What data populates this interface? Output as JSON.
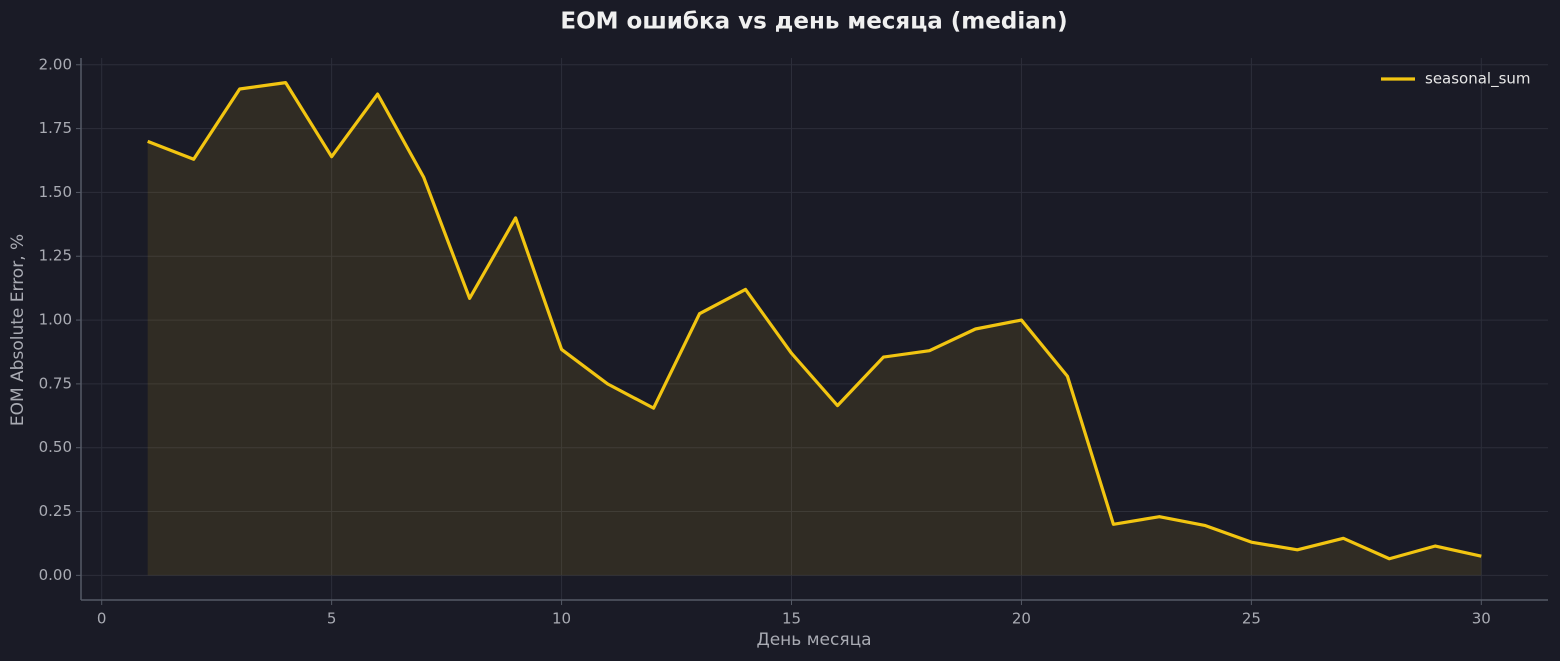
{
  "chart_data": {
    "type": "line",
    "title": "EOM ошибка vs день месяца (median)",
    "x_label": "День месяца",
    "y_label": "EOM Absolute Error, %",
    "x": [
      1,
      2,
      3,
      4,
      5,
      6,
      7,
      8,
      9,
      10,
      11,
      12,
      13,
      14,
      15,
      16,
      17,
      18,
      19,
      20,
      21,
      22,
      23,
      24,
      25,
      26,
      27,
      28,
      29,
      30
    ],
    "series": [
      {
        "name": "seasonal_sum",
        "color": "#f2c511",
        "values": [
          1.7,
          1.63,
          1.905,
          1.93,
          1.64,
          1.885,
          1.56,
          1.085,
          1.4,
          0.885,
          0.75,
          0.655,
          1.025,
          1.12,
          0.87,
          0.665,
          0.855,
          0.88,
          0.965,
          1.0,
          0.78,
          0.2,
          0.23,
          0.195,
          0.13,
          0.1,
          0.145,
          0.065,
          0.115,
          0.075
        ]
      }
    ],
    "xlim": [
      -0.45,
      31.45
    ],
    "xticks": [
      0,
      5,
      10,
      15,
      20,
      25,
      30
    ],
    "ylim": [
      -0.0965,
      2.0265
    ],
    "yticks": [
      {
        "value": 0,
        "label": "0.00"
      },
      {
        "value": 0.25,
        "label": "0.25"
      },
      {
        "value": 0.5,
        "label": "0.50"
      },
      {
        "value": 0.75,
        "label": "0.75"
      },
      {
        "value": 1,
        "label": "1.00"
      },
      {
        "value": 1.25,
        "label": "1.25"
      },
      {
        "value": 1.5,
        "label": "1.50"
      },
      {
        "value": 1.75,
        "label": "1.75"
      },
      {
        "value": 2,
        "label": "2.00"
      }
    ],
    "grid": true,
    "legend": "upper right",
    "fill": true
  }
}
